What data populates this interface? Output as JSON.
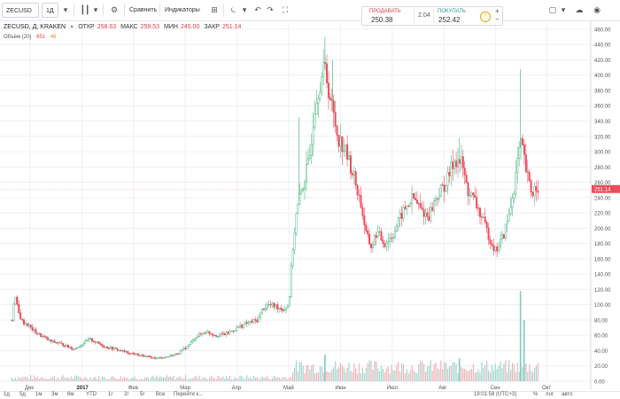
{
  "toolbar": {
    "symbol": "ZECUSD",
    "interval": "1Д",
    "compare_label": "Сравнить",
    "indicators_label": "Индикаторы"
  },
  "trade": {
    "sell_label": "ПРОДАВАТЬ",
    "sell_price": "250.38",
    "spread": "2.04",
    "buy_label": "ПОКУПАТЬ",
    "buy_price": "252.42"
  },
  "legend": {
    "title": "ZECUSD, Д, KRAKEN",
    "open_label": "ОТКР",
    "open": "258.63",
    "high_label": "МАКС",
    "high": "259.53",
    "low_label": "МИН",
    "low": "245.00",
    "close_label": "ЗАКР",
    "close": "251.14",
    "volume_label": "Объём (20)",
    "volume_1": "651",
    "volume_2": "46"
  },
  "bottom": {
    "ranges": [
      "1д",
      "5д",
      "1м",
      "3м",
      "6м",
      "YTD",
      "1г",
      "2г",
      "5г",
      "Все",
      "Перейти к..."
    ],
    "clock": "19:01:58 (UTC+3)",
    "options": [
      "%",
      "лог",
      "авто"
    ]
  },
  "chart_data": {
    "type": "candlestick",
    "symbol": "ZECUSD",
    "exchange": "KRAKEN",
    "interval": "1D",
    "y_ticks": [
      0,
      20,
      40,
      60,
      80,
      100,
      120,
      140,
      160,
      180,
      200,
      220,
      240,
      260,
      280,
      300,
      320,
      340,
      360,
      380,
      400,
      420,
      440,
      460
    ],
    "ylim": [
      0,
      468
    ],
    "last_price": 251.14,
    "x_ticks": [
      "Дек",
      "2017",
      "Фев",
      "Мар",
      "Апр",
      "Май",
      "Июн",
      "Июл",
      "Авг",
      "Сен",
      "Окт"
    ],
    "x_tick_months": [
      0,
      1,
      2,
      3,
      4,
      5,
      6,
      7,
      8,
      9,
      10
    ],
    "months_span": 10.9,
    "price_path": [
      [
        0.0,
        80
      ],
      [
        0.05,
        115
      ],
      [
        0.12,
        90
      ],
      [
        0.2,
        78
      ],
      [
        0.3,
        74
      ],
      [
        0.45,
        64
      ],
      [
        0.6,
        58
      ],
      [
        0.75,
        52
      ],
      [
        0.9,
        50
      ],
      [
        1.05,
        46
      ],
      [
        1.2,
        42
      ],
      [
        1.35,
        48
      ],
      [
        1.5,
        55
      ],
      [
        1.65,
        50
      ],
      [
        1.8,
        45
      ],
      [
        2.0,
        42
      ],
      [
        2.2,
        38
      ],
      [
        2.4,
        35
      ],
      [
        2.6,
        32
      ],
      [
        2.8,
        30
      ],
      [
        3.0,
        32
      ],
      [
        3.2,
        36
      ],
      [
        3.4,
        46
      ],
      [
        3.55,
        58
      ],
      [
        3.75,
        65
      ],
      [
        3.95,
        60
      ],
      [
        4.15,
        62
      ],
      [
        4.35,
        70
      ],
      [
        4.55,
        76
      ],
      [
        4.75,
        80
      ],
      [
        4.85,
        95
      ],
      [
        4.95,
        100
      ],
      [
        5.1,
        98
      ],
      [
        5.25,
        94
      ],
      [
        5.35,
        100
      ],
      [
        5.42,
        170
      ],
      [
        5.5,
        220
      ],
      [
        5.6,
        250
      ],
      [
        5.75,
        290
      ],
      [
        5.85,
        360
      ],
      [
        5.95,
        390
      ],
      [
        6.05,
        410
      ],
      [
        6.15,
        370
      ],
      [
        6.3,
        320
      ],
      [
        6.45,
        300
      ],
      [
        6.6,
        270
      ],
      [
        6.75,
        230
      ],
      [
        6.85,
        190
      ],
      [
        6.95,
        175
      ],
      [
        7.05,
        195
      ],
      [
        7.2,
        180
      ],
      [
        7.35,
        190
      ],
      [
        7.55,
        220
      ],
      [
        7.75,
        240
      ],
      [
        7.9,
        225
      ],
      [
        8.05,
        215
      ],
      [
        8.2,
        240
      ],
      [
        8.4,
        260
      ],
      [
        8.55,
        290
      ],
      [
        8.7,
        285
      ],
      [
        8.8,
        250
      ],
      [
        8.95,
        235
      ],
      [
        9.1,
        210
      ],
      [
        9.25,
        185
      ],
      [
        9.35,
        170
      ],
      [
        9.5,
        190
      ],
      [
        9.6,
        215
      ],
      [
        9.7,
        250
      ],
      [
        9.8,
        300
      ],
      [
        9.85,
        310
      ],
      [
        9.95,
        270
      ],
      [
        10.05,
        245
      ],
      [
        10.15,
        258
      ],
      [
        10.2,
        251
      ]
    ],
    "spikes": [
      {
        "month": 5.55,
        "high": 345
      },
      {
        "month": 6.05,
        "high": 450
      },
      {
        "month": 6.2,
        "high": 420
      },
      {
        "month": 9.83,
        "high": 408
      },
      {
        "month": 8.65,
        "high": 318
      }
    ],
    "volume_scale_max": 140,
    "volume_spikes": [
      {
        "month": 9.83,
        "value": 118
      },
      {
        "month": 9.9,
        "value": 80
      },
      {
        "month": 6.05,
        "value": 35
      },
      {
        "month": 8.65,
        "value": 30
      }
    ]
  }
}
